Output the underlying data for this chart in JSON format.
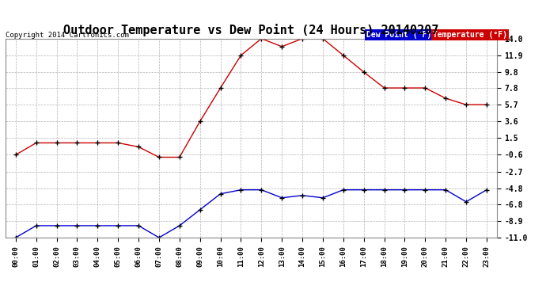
{
  "title": "Outdoor Temperature vs Dew Point (24 Hours) 20140207",
  "copyright": "Copyright 2014 Cartronics.com",
  "hours": [
    "00:00",
    "01:00",
    "02:00",
    "03:00",
    "04:00",
    "05:00",
    "06:00",
    "07:00",
    "08:00",
    "09:00",
    "10:00",
    "11:00",
    "12:00",
    "13:00",
    "14:00",
    "15:00",
    "16:00",
    "17:00",
    "18:00",
    "19:00",
    "20:00",
    "21:00",
    "22:00",
    "23:00"
  ],
  "temperature": [
    -0.6,
    0.9,
    0.9,
    0.9,
    0.9,
    0.9,
    0.4,
    -0.9,
    -0.9,
    3.6,
    7.8,
    11.9,
    14.0,
    13.0,
    14.0,
    14.0,
    11.9,
    9.8,
    7.8,
    7.8,
    7.8,
    6.5,
    5.7,
    5.7
  ],
  "dew_point": [
    -11.0,
    -9.5,
    -9.5,
    -9.5,
    -9.5,
    -9.5,
    -9.5,
    -11.0,
    -9.5,
    -7.5,
    -5.5,
    -5.0,
    -5.0,
    -6.0,
    -5.7,
    -6.0,
    -5.0,
    -5.0,
    -5.0,
    -5.0,
    -5.0,
    -5.0,
    -6.5,
    -5.0
  ],
  "temp_color": "#cc0000",
  "dew_color": "#0000cc",
  "ylim_min": -11.0,
  "ylim_max": 14.0,
  "yticks": [
    -11.0,
    -8.9,
    -6.8,
    -4.8,
    -2.7,
    -0.6,
    1.5,
    3.6,
    5.7,
    7.8,
    9.8,
    11.9,
    14.0
  ],
  "background_color": "#ffffff",
  "plot_bg_color": "#ffffff",
  "grid_color": "#aaaaaa",
  "title_fontsize": 11,
  "legend_dew_label": "Dew Point (°F)",
  "legend_temp_label": "Temperature (°F)"
}
